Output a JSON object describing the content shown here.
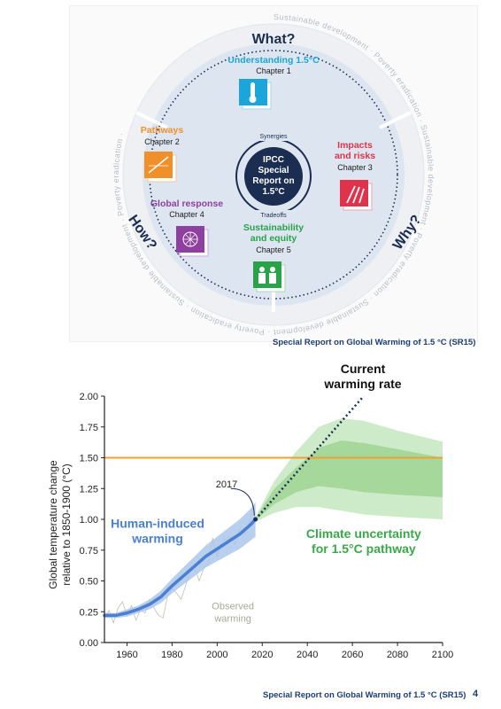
{
  "wheel": {
    "ring_text": "Sustainable development · Poverty eradication · Sustainable development · Poverty eradication · Sustainable development · Poverty eradication · Sustainable development · Poverty eradication ·",
    "what": "What?",
    "how": "How?",
    "why": "Why?",
    "center": [
      "IPCC",
      "Special",
      "Report on",
      "1.5°C"
    ],
    "synergies": "Synergies",
    "tradeoffs": "Tradeoffs",
    "chapters": [
      {
        "title": "Understanding 1.5°C",
        "sub": "Chapter 1",
        "color": "#1aa6d8",
        "icon": "thermometer-icon"
      },
      {
        "title": "Pathways",
        "sub": "Chapter 2",
        "color": "#f0902a",
        "icon": "pathway-chart-icon"
      },
      {
        "title": "Impacts",
        "title2": "and risks",
        "sub": "Chapter 3",
        "color": "#e0324b",
        "icon": "wheat-icon"
      },
      {
        "title": "Global response",
        "sub": "Chapter 4",
        "color": "#8e3fa0",
        "icon": "network-icon"
      },
      {
        "title": "Sustainability",
        "title2": "and equity",
        "sub": "Chapter 5",
        "color": "#2aa24a",
        "icon": "people-icon"
      }
    ],
    "caption": "Special Report on Global Warming of 1.5 °C (SR15)"
  },
  "colors": {
    "human": "#4a7fd1",
    "green_uncertainty": "#3aa84a",
    "threshold": "#f0a030",
    "dark_navy": "#1b2d50",
    "observed": "#b0b0a0"
  },
  "chart_data": {
    "type": "line",
    "title": "",
    "xlabel": "",
    "ylabel": "Global temperature change relative to 1850-1900 (°C)",
    "xlim": [
      1950,
      2100
    ],
    "ylim": [
      0,
      2.0
    ],
    "xticks": [
      1960,
      1980,
      2000,
      2020,
      2040,
      2060,
      2080,
      2100
    ],
    "yticks": [
      "0.00",
      "0.25",
      "0.50",
      "0.75",
      "1.00",
      "1.25",
      "1.50",
      "1.75",
      "2.00"
    ],
    "threshold": {
      "y": 1.5
    },
    "series": [
      {
        "name": "Human-induced warming",
        "x": [
          1950,
          1955,
          1960,
          1965,
          1970,
          1975,
          1980,
          1985,
          1990,
          1995,
          2000,
          2005,
          2010,
          2015,
          2017
        ],
        "y": [
          0.22,
          0.22,
          0.24,
          0.27,
          0.31,
          0.37,
          0.46,
          0.54,
          0.62,
          0.7,
          0.76,
          0.82,
          0.88,
          0.96,
          1.0
        ],
        "band_half": [
          0.02,
          0.02,
          0.03,
          0.03,
          0.04,
          0.05,
          0.06,
          0.07,
          0.08,
          0.09,
          0.1,
          0.11,
          0.12,
          0.13,
          0.14
        ]
      },
      {
        "name": "Observed warming",
        "x": [
          1950,
          1952,
          1954,
          1956,
          1958,
          1960,
          1962,
          1964,
          1966,
          1968,
          1970,
          1972,
          1974,
          1976,
          1978,
          1980,
          1982,
          1984,
          1986,
          1988,
          1990,
          1992,
          1994,
          1996,
          1998,
          2000,
          2002,
          2004,
          2006,
          2008,
          2010,
          2012,
          2014,
          2016
        ],
        "y": [
          0.2,
          0.26,
          0.16,
          0.28,
          0.33,
          0.22,
          0.3,
          0.18,
          0.27,
          0.24,
          0.35,
          0.28,
          0.22,
          0.2,
          0.38,
          0.44,
          0.4,
          0.35,
          0.46,
          0.58,
          0.62,
          0.5,
          0.6,
          0.64,
          0.85,
          0.7,
          0.82,
          0.84,
          0.86,
          0.8,
          0.92,
          0.88,
          0.96,
          1.1
        ]
      },
      {
        "name": "Current warming rate",
        "x": [
          2017,
          2065
        ],
        "y": [
          1.0,
          2.0
        ]
      },
      {
        "name": "Climate uncertainty for 1.5°C pathway",
        "x": [
          2017,
          2025,
          2035,
          2045,
          2055,
          2065,
          2080,
          2100
        ],
        "outer_low": [
          0.98,
          1.05,
          1.1,
          1.1,
          1.07,
          1.04,
          1.02,
          1.0
        ],
        "outer_high": [
          1.02,
          1.3,
          1.55,
          1.75,
          1.82,
          1.8,
          1.72,
          1.63
        ],
        "inner_low": [
          0.99,
          1.12,
          1.22,
          1.27,
          1.25,
          1.22,
          1.2,
          1.18
        ],
        "inner_high": [
          1.01,
          1.24,
          1.42,
          1.58,
          1.64,
          1.62,
          1.57,
          1.5
        ]
      }
    ],
    "annotations": [
      {
        "text": "2017",
        "x": 2017,
        "y": 1.0
      },
      {
        "text": "Current",
        "text2": "warming rate"
      },
      {
        "text": "Human-induced",
        "text2": "warming"
      },
      {
        "text": "Climate uncertainty",
        "text2": "for 1.5°C pathway"
      },
      {
        "text": "Observed",
        "text2": "warming"
      }
    ],
    "caption": "Special Report on Global Warming of 1.5 °C (SR15)",
    "page_number": "4"
  }
}
